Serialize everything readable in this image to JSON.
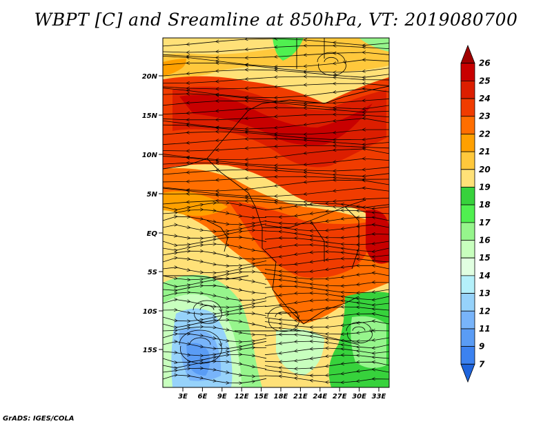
{
  "title": "WBPT [C] and Sreamline at 850hPa, VT: 2019080700",
  "credit": "GrADS: IGES/COLA",
  "map": {
    "lat_labels": [
      "20N",
      "15N",
      "10N",
      "5N",
      "EQ",
      "5S",
      "10S",
      "15S"
    ],
    "lon_labels": [
      "3E",
      "6E",
      "9E",
      "12E",
      "15E",
      "18E",
      "21E",
      "24E",
      "27E",
      "30E",
      "33E"
    ]
  },
  "colorbar": {
    "levels": [
      "7",
      "9",
      "11",
      "12",
      "13",
      "14",
      "15",
      "16",
      "17",
      "18",
      "19",
      "20",
      "21",
      "22",
      "23",
      "24",
      "25",
      "26"
    ],
    "colors": [
      "#1e64dc",
      "#3c82f0",
      "#5a9cf5",
      "#78b4fa",
      "#96d2fa",
      "#b4f0fa",
      "#e1ffe1",
      "#c8ffbe",
      "#96f58c",
      "#50f050",
      "#37d23c",
      "#ffe178",
      "#ffc83c",
      "#ffa000",
      "#ff6e00",
      "#f03c00",
      "#dc1e00",
      "#c80000",
      "#a00000"
    ]
  }
}
